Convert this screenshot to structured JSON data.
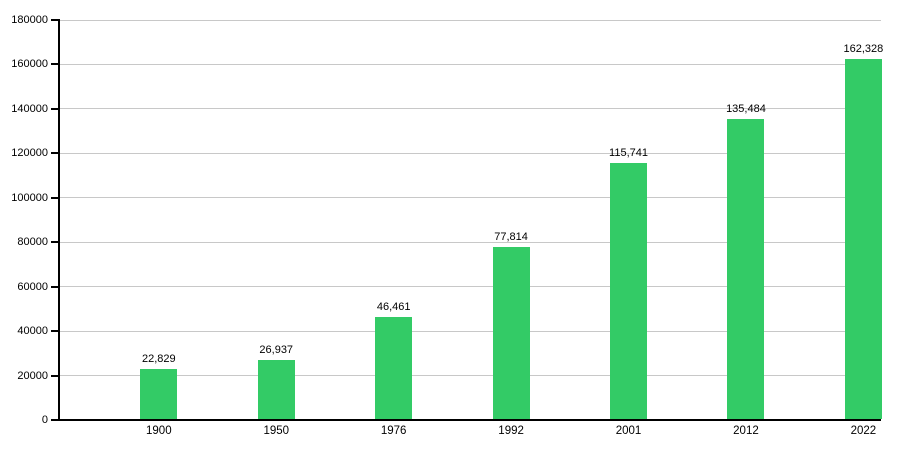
{
  "chart_data": {
    "type": "bar",
    "title": "",
    "xlabel": "",
    "ylabel": "",
    "categories": [
      "1900",
      "1950",
      "1976",
      "1992",
      "2001",
      "2012",
      "2022"
    ],
    "values": [
      22829,
      26937,
      46461,
      77814,
      115741,
      135484,
      162328
    ],
    "value_labels": [
      "22,829",
      "26,937",
      "46,461",
      "77,814",
      "115,741",
      "135,484",
      "162,328"
    ],
    "ylim": [
      0,
      180000
    ],
    "y_tick_step": 20000,
    "y_tick_labels": [
      "0",
      "20000",
      "40000",
      "60000",
      "80000",
      "100000",
      "120000",
      "140000",
      "160000",
      "180000"
    ],
    "grid": "horizontal-only",
    "legend": "none",
    "colors": {
      "bar": "#33cb66",
      "gridline": "#c8c8c8",
      "axis": "#000000",
      "text": "#000000",
      "background": "#ffffff"
    }
  }
}
